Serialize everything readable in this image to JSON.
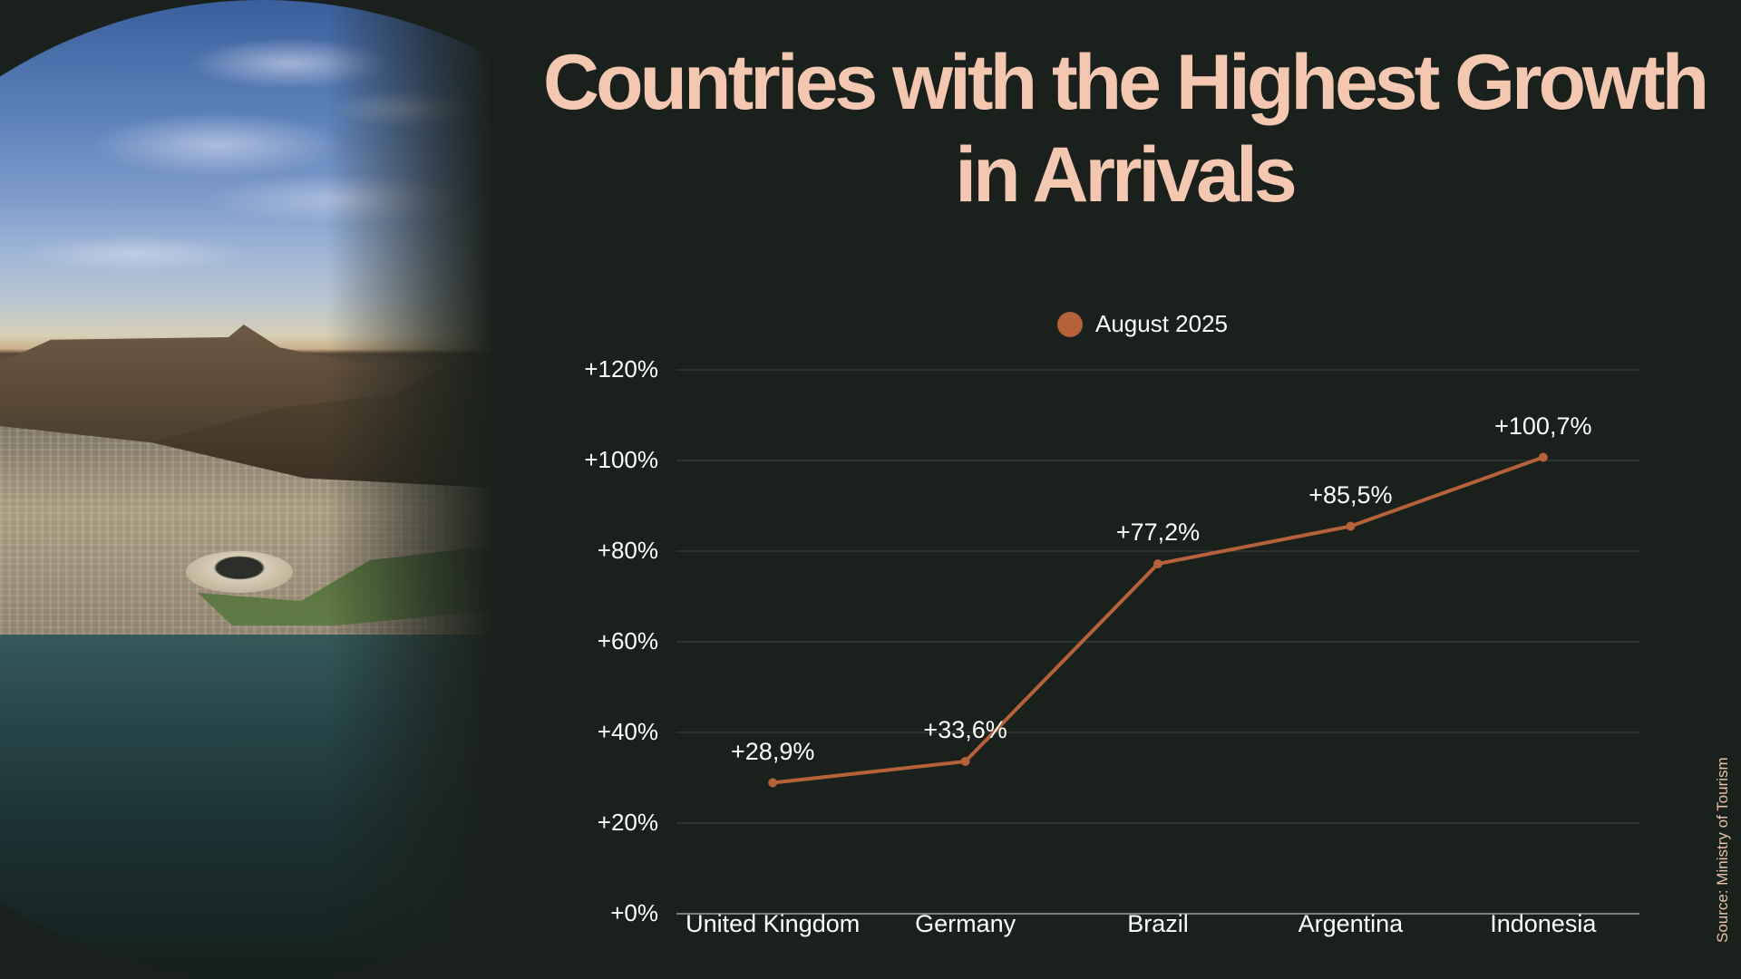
{
  "title": "Countries with the Highest Growth in Arrivals",
  "photo": {
    "description": "landscape-photo",
    "alt": "Aerial coastal city photo with flat-topped mountain and stadium"
  },
  "legend": {
    "label": "August 2025",
    "color": "#b5613a"
  },
  "source": "Source: Ministry of Tourism",
  "chart_data": {
    "type": "line",
    "title": "Countries with the Highest Growth in Arrivals",
    "xlabel": "",
    "ylabel": "",
    "categories": [
      "United Kingdom",
      "Germany",
      "Brazil",
      "Argentina",
      "Indonesia"
    ],
    "series": [
      {
        "name": "August 2025",
        "values": [
          28.9,
          33.6,
          77.2,
          85.5,
          100.7
        ],
        "labels": [
          "+28,9%",
          "+33,6%",
          "+77,2%",
          "+85,5%",
          "+100,7%"
        ],
        "color": "#b5613a"
      }
    ],
    "ylim": [
      0,
      120
    ],
    "yticks": [
      0,
      20,
      40,
      60,
      80,
      100,
      120
    ],
    "ytick_labels": [
      "+0%",
      "+20%",
      "+40%",
      "+60%",
      "+80%",
      "+100%",
      "+120%"
    ],
    "grid": true,
    "legend_position": "top-center"
  },
  "colors": {
    "background": "#1a201b",
    "title": "#f4c8b0",
    "line": "#b5613a",
    "grid": "#3d4640",
    "axis": "#9aa39c",
    "text": "#ffffff",
    "source": "#e8c2aa"
  }
}
